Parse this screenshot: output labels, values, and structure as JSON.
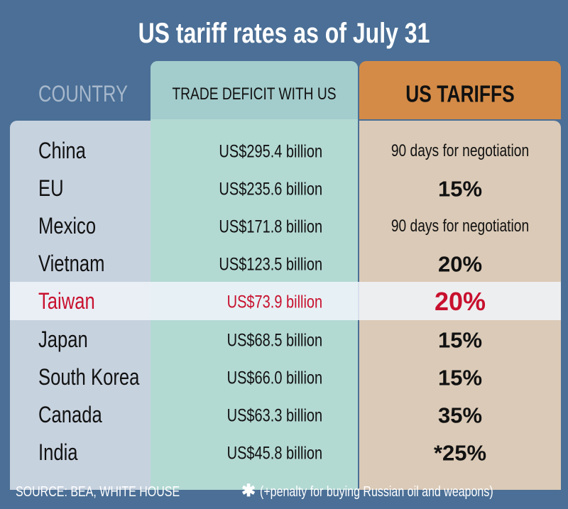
{
  "header": {
    "title": "US tariff rates as of July 31"
  },
  "table": {
    "columns": [
      "COUNTRY",
      "TRADE DEFICIT WITH US",
      "US TARIFFS"
    ],
    "rows": [
      [
        "China",
        "US$295.4 billion",
        "90 days for negotiation"
      ],
      [
        "EU",
        "US$235.6 billion",
        "15%"
      ],
      [
        "Mexico",
        "US$171.8 billion",
        "90 days for negotiation"
      ],
      [
        "Vietnam",
        "US$123.5 billion",
        "20%"
      ],
      [
        "Taiwan",
        "US$73.9 billion",
        "20%"
      ],
      [
        "Japan",
        "US$68.5 billion",
        "15%"
      ],
      [
        "South Korea",
        "US$66.0 billion",
        "15%"
      ],
      [
        "Canada",
        "US$63.3 billion",
        "35%"
      ],
      [
        "India",
        "US$45.8 billion",
        "*25%"
      ]
    ]
  },
  "footer": {
    "source": "SOURCE: BEA, WHITE HOUSE",
    "note_marker": "✱",
    "note": "(+penalty for buying Russian oil and weapons)"
  }
}
